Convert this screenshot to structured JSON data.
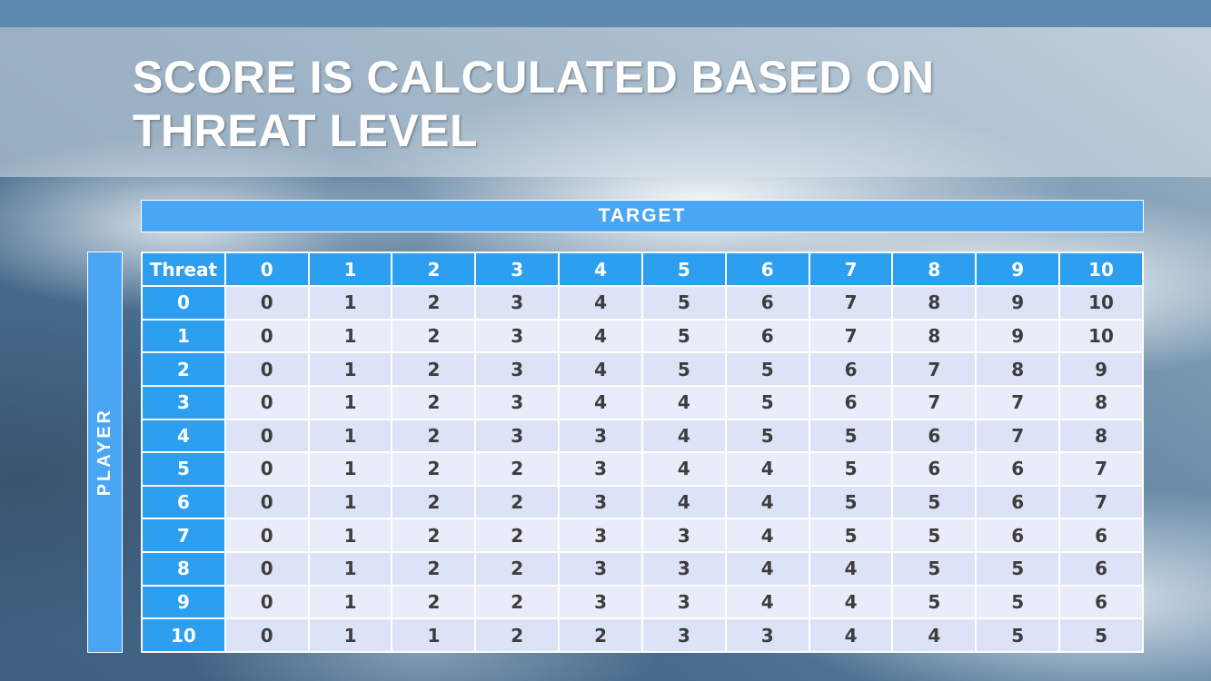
{
  "title": {
    "line1": "SCORE IS CALCULATED BASED ON",
    "line2": "THREAT LEVEL"
  },
  "matrix": {
    "target_label": "TARGET",
    "player_label": "PLAYER",
    "corner_label": "Threat",
    "col_headers": [
      "0",
      "1",
      "2",
      "3",
      "4",
      "5",
      "6",
      "7",
      "8",
      "9",
      "10"
    ],
    "rows": [
      {
        "header": "0",
        "values": [
          "0",
          "1",
          "2",
          "3",
          "4",
          "5",
          "6",
          "7",
          "8",
          "9",
          "10"
        ]
      },
      {
        "header": "1",
        "values": [
          "0",
          "1",
          "2",
          "3",
          "4",
          "5",
          "6",
          "7",
          "8",
          "9",
          "10"
        ]
      },
      {
        "header": "2",
        "values": [
          "0",
          "1",
          "2",
          "3",
          "4",
          "5",
          "5",
          "6",
          "7",
          "8",
          "9"
        ]
      },
      {
        "header": "3",
        "values": [
          "0",
          "1",
          "2",
          "3",
          "4",
          "4",
          "5",
          "6",
          "7",
          "7",
          "8"
        ]
      },
      {
        "header": "4",
        "values": [
          "0",
          "1",
          "2",
          "3",
          "3",
          "4",
          "5",
          "5",
          "6",
          "7",
          "8"
        ]
      },
      {
        "header": "5",
        "values": [
          "0",
          "1",
          "2",
          "2",
          "3",
          "4",
          "4",
          "5",
          "6",
          "6",
          "7"
        ]
      },
      {
        "header": "6",
        "values": [
          "0",
          "1",
          "2",
          "2",
          "3",
          "4",
          "4",
          "5",
          "5",
          "6",
          "7"
        ]
      },
      {
        "header": "7",
        "values": [
          "0",
          "1",
          "2",
          "2",
          "3",
          "3",
          "4",
          "5",
          "5",
          "6",
          "6"
        ]
      },
      {
        "header": "8",
        "values": [
          "0",
          "1",
          "2",
          "2",
          "3",
          "3",
          "4",
          "4",
          "5",
          "5",
          "6"
        ]
      },
      {
        "header": "9",
        "values": [
          "0",
          "1",
          "2",
          "2",
          "3",
          "3",
          "4",
          "4",
          "5",
          "5",
          "6"
        ]
      },
      {
        "header": "10",
        "values": [
          "0",
          "1",
          "1",
          "2",
          "2",
          "3",
          "3",
          "4",
          "4",
          "5",
          "5"
        ]
      }
    ]
  },
  "colors": {
    "top_bar": "#5d8ab0",
    "band_blue": "#4aa6f2",
    "header_blue": "#2d9ff0",
    "row_dark": "#dce3f6",
    "row_light": "#e9edf9",
    "text_dark": "#3d3d3d"
  }
}
